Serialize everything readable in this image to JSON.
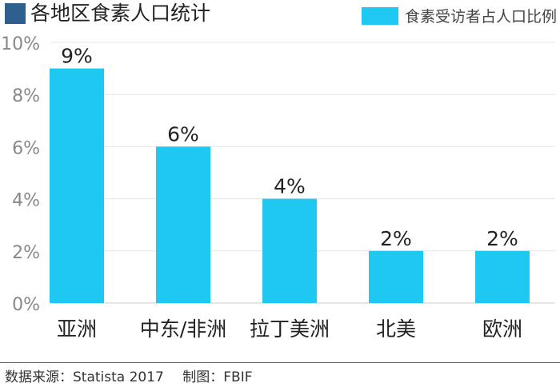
{
  "title": "各地区食素人口统计",
  "colors": {
    "bar": "#1ec8f0",
    "title_mark": "#2e5f8e",
    "grid": "#e4e4e4",
    "axis_tick": "#888888"
  },
  "legend": {
    "label": "食素受访者占人口比例"
  },
  "footer": {
    "source": "数据来源：Statista 2017",
    "credit": "制图：FBIF"
  },
  "chart_data": {
    "type": "bar",
    "categories": [
      "亚洲",
      "中东/非洲",
      "拉丁美洲",
      "北美",
      "欧洲"
    ],
    "series": [
      {
        "name": "食素受访者占人口比例",
        "values": [
          9,
          6,
          4,
          2,
          2
        ]
      }
    ],
    "data_labels": [
      "9%",
      "6%",
      "4%",
      "2%",
      "2%"
    ],
    "ylim": [
      0,
      10
    ],
    "yticks": [
      0,
      2,
      4,
      6,
      8,
      10
    ],
    "ytick_labels": [
      "0%",
      "2%",
      "4%",
      "6%",
      "8%",
      "10%"
    ],
    "grid": true,
    "legend_position": "top-right"
  }
}
